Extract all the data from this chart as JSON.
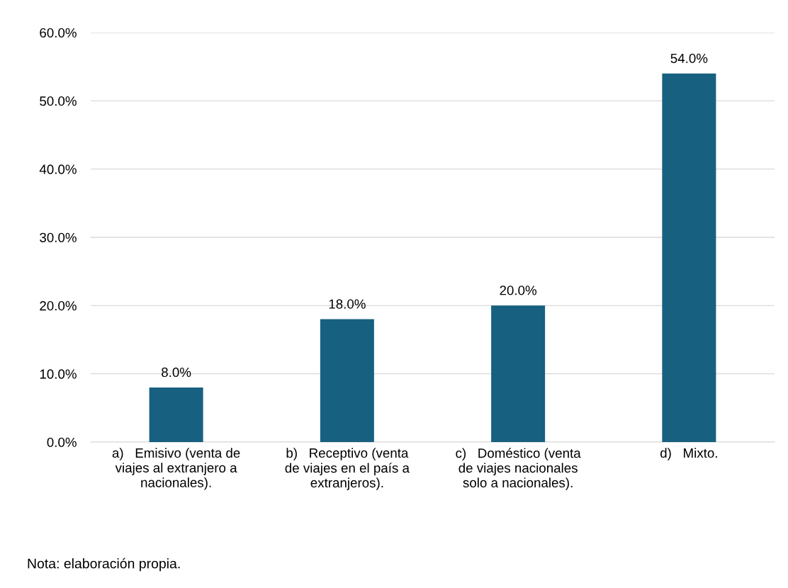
{
  "chart_data": {
    "type": "bar",
    "categories": [
      "a)   Emisivo (venta de\nviajes al extranjero a\nnacionales).",
      "b)   Receptivo (venta\nde viajes en el país a\nextranjeros).",
      "c)   Doméstico (venta\nde viajes nacionales\nsolo a nacionales).",
      "d)   Mixto."
    ],
    "values": [
      8.0,
      18.0,
      20.0,
      54.0
    ],
    "color": "#17607f",
    "value_labels": [
      "8.0%",
      "18.0%",
      "20.0%",
      "54.0%"
    ],
    "ylim": [
      0,
      60
    ],
    "yticks": [
      {
        "value": 0,
        "label": "0.0%"
      },
      {
        "value": 10,
        "label": "10.0%"
      },
      {
        "value": 20,
        "label": "20.0%"
      },
      {
        "value": 30,
        "label": "30.0%"
      },
      {
        "value": 40,
        "label": "40.0%"
      },
      {
        "value": 50,
        "label": "50.0%"
      },
      {
        "value": 60,
        "label": "60.0%"
      }
    ],
    "grid": "y",
    "legend": false,
    "annotations": [
      "Nota: elaboración propia."
    ]
  }
}
